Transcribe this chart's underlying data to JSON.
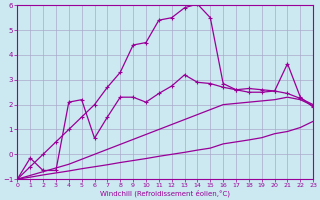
{
  "xlabel": "Windchill (Refroidissement éolien,°C)",
  "bg_color": "#cce8f0",
  "grid_color": "#aaaacc",
  "line_color": "#990099",
  "xlim": [
    0,
    23
  ],
  "ylim": [
    -1,
    6
  ],
  "xticks": [
    0,
    1,
    2,
    3,
    4,
    5,
    6,
    7,
    8,
    9,
    10,
    11,
    12,
    13,
    14,
    15,
    16,
    17,
    18,
    19,
    20,
    21,
    22,
    23
  ],
  "yticks": [
    -1,
    0,
    1,
    2,
    3,
    4,
    5,
    6
  ],
  "s1_x": [
    0,
    1,
    2,
    3,
    4,
    5,
    6,
    7,
    8,
    9,
    10,
    11,
    12,
    13,
    14,
    15,
    16,
    17,
    18,
    19,
    20,
    21,
    22,
    23
  ],
  "s1_y": [
    -1.0,
    -0.92,
    -0.83,
    -0.75,
    -0.67,
    -0.58,
    -0.5,
    -0.42,
    -0.33,
    -0.25,
    -0.17,
    -0.08,
    0.0,
    0.08,
    0.17,
    0.25,
    0.42,
    0.5,
    0.58,
    0.67,
    0.83,
    0.92,
    1.08,
    1.33
  ],
  "s2_x": [
    0,
    1,
    2,
    3,
    4,
    5,
    6,
    7,
    8,
    9,
    10,
    11,
    12,
    13,
    14,
    15,
    16,
    17,
    18,
    19,
    20,
    21,
    22,
    23
  ],
  "s2_y": [
    -1.0,
    -0.85,
    -0.7,
    -0.55,
    -0.4,
    -0.2,
    0.0,
    0.2,
    0.4,
    0.6,
    0.8,
    1.0,
    1.2,
    1.4,
    1.6,
    1.8,
    2.0,
    2.05,
    2.1,
    2.15,
    2.2,
    2.3,
    2.2,
    1.95
  ],
  "s3_x": [
    0,
    1,
    2,
    3,
    4,
    5,
    6,
    7,
    8,
    9,
    10,
    11,
    12,
    13,
    14,
    15,
    16,
    17,
    18,
    19,
    20,
    21,
    22,
    23
  ],
  "s3_y": [
    -1.0,
    -0.15,
    -0.65,
    -0.65,
    2.1,
    2.2,
    0.65,
    1.5,
    2.3,
    2.3,
    2.1,
    2.45,
    2.75,
    3.2,
    2.9,
    2.85,
    2.7,
    2.6,
    2.65,
    2.6,
    2.55,
    2.45,
    2.25,
    2.0
  ],
  "s4_x": [
    0,
    1,
    2,
    3,
    4,
    5,
    6,
    7,
    8,
    9,
    10,
    11,
    12,
    13,
    14,
    15,
    16,
    17,
    18,
    19,
    20,
    21,
    22,
    23
  ],
  "s4_y": [
    -1.0,
    -0.5,
    0.0,
    0.5,
    1.0,
    1.5,
    2.0,
    2.7,
    3.3,
    4.4,
    4.5,
    5.4,
    5.5,
    5.9,
    6.05,
    5.5,
    2.85,
    2.6,
    2.5,
    2.5,
    2.55,
    3.65,
    2.3,
    1.9
  ]
}
